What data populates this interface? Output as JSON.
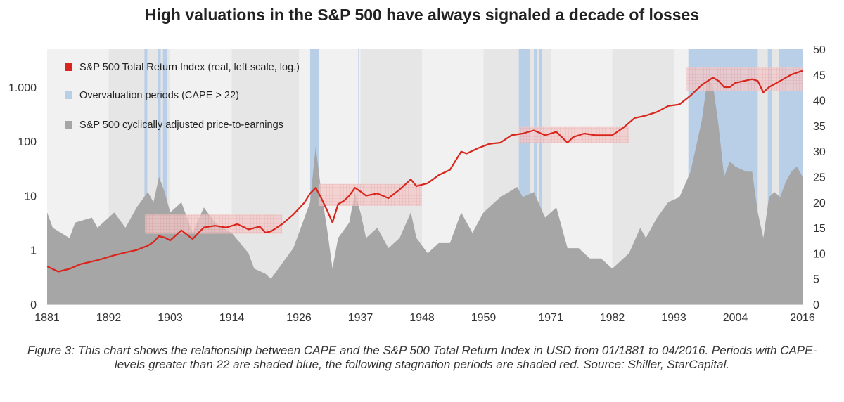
{
  "title": "High valuations in the S&P 500 have always signaled a decade of losses",
  "caption": "Figure 3: This chart shows the relationship between CAPE and the S&P 500 Total Return Index in USD from 01/1881 to 04/2016. Periods with CAPE-levels greater than 22 are shaded blue, the following stagnation periods are shaded red. Source: Shiller, StarCapital.",
  "colors": {
    "price": "#d9251c",
    "cape_area": "#a6a6a6",
    "overvaluation": "#b9cfe8",
    "stagnation": "#e9a9a9",
    "band_light": "#f1f1f1",
    "band_dark": "#e6e6e6"
  },
  "chart_data": {
    "type": "line",
    "title": "High valuations in the S&P 500 have always signaled a decade of losses",
    "x_range": [
      1881,
      2016
    ],
    "x_ticks": [
      1881,
      1892,
      1903,
      1914,
      1926,
      1937,
      1948,
      1959,
      1971,
      1982,
      1993,
      2004,
      2016
    ],
    "left_axis": {
      "scale": "log",
      "range": [
        0.1,
        5000
      ],
      "ticks": [
        {
          "value": 1000,
          "label": "1.000"
        },
        {
          "value": 100,
          "label": "100"
        },
        {
          "value": 10,
          "label": "10"
        },
        {
          "value": 1,
          "label": "1"
        },
        {
          "value": 0.1,
          "label": "0"
        }
      ]
    },
    "right_axis": {
      "scale": "linear",
      "range": [
        0,
        50
      ],
      "ticks": [
        0,
        5,
        10,
        15,
        20,
        25,
        30,
        35,
        40,
        45,
        50
      ]
    },
    "legend": [
      {
        "label": "S&P 500 Total Return Index (real, left scale, log.)",
        "kind": "price"
      },
      {
        "label": "Overvaluation periods (CAPE > 22)",
        "kind": "overvaluation"
      },
      {
        "label": "S&P 500 cyclically adjusted price-to-earnings",
        "kind": "cape"
      }
    ],
    "series": [
      {
        "name": "S&P 500 Total Return Index (real, left scale, log.)",
        "axis": "left",
        "x": [
          1881,
          1883,
          1885,
          1887,
          1890,
          1893,
          1895,
          1897,
          1899,
          1900,
          1901,
          1902,
          1903,
          1905,
          1907,
          1909,
          1911,
          1913,
          1915,
          1917,
          1919,
          1920,
          1921,
          1923,
          1925,
          1927,
          1928,
          1929,
          1930,
          1931,
          1932,
          1933,
          1934,
          1935,
          1936,
          1937,
          1938,
          1940,
          1942,
          1944,
          1946,
          1947,
          1949,
          1951,
          1953,
          1955,
          1956,
          1958,
          1960,
          1962,
          1964,
          1966,
          1968,
          1970,
          1972,
          1974,
          1975,
          1977,
          1979,
          1982,
          1984,
          1986,
          1988,
          1990,
          1992,
          1994,
          1996,
          1998,
          2000,
          2001,
          2002,
          2003,
          2004,
          2007,
          2008,
          2009,
          2010,
          2012,
          2014,
          2016
        ],
        "values": [
          0.5,
          0.4,
          0.45,
          0.55,
          0.65,
          0.8,
          0.9,
          1.0,
          1.2,
          1.4,
          1.8,
          1.7,
          1.5,
          2.3,
          1.6,
          2.6,
          2.8,
          2.6,
          3.0,
          2.4,
          2.7,
          2.1,
          2.2,
          3.0,
          4.5,
          7.5,
          11,
          14,
          9,
          5.5,
          3.2,
          7,
          8,
          10,
          14,
          12,
          10,
          11,
          9,
          13,
          20,
          15,
          17,
          24,
          30,
          65,
          60,
          75,
          90,
          95,
          130,
          140,
          160,
          130,
          150,
          95,
          120,
          140,
          130,
          130,
          180,
          270,
          300,
          350,
          450,
          480,
          700,
          1100,
          1500,
          1300,
          1000,
          1000,
          1200,
          1400,
          1300,
          800,
          1000,
          1300,
          1700,
          2000
        ]
      },
      {
        "name": "S&P 500 cyclically adjusted price-to-earnings",
        "axis": "right",
        "type": "area",
        "x": [
          1881,
          1882,
          1885,
          1886,
          1889,
          1890,
          1893,
          1895,
          1897,
          1899,
          1900,
          1901,
          1902,
          1903,
          1905,
          1907,
          1909,
          1911,
          1914,
          1917,
          1918,
          1920,
          1921,
          1923,
          1925,
          1927,
          1928,
          1929,
          1930,
          1931,
          1932,
          1933,
          1935,
          1936,
          1937,
          1938,
          1940,
          1942,
          1944,
          1946,
          1947,
          1949,
          1951,
          1953,
          1955,
          1957,
          1959,
          1962,
          1965,
          1966,
          1968,
          1970,
          1972,
          1974,
          1976,
          1978,
          1980,
          1982,
          1985,
          1987,
          1988,
          1990,
          1992,
          1994,
          1996,
          1998,
          1999,
          2000,
          2001,
          2002,
          2003,
          2004,
          2006,
          2007,
          2008,
          2009,
          2010,
          2011,
          2012,
          2013,
          2014,
          2015,
          2016
        ],
        "values": [
          18,
          15,
          13,
          16,
          17,
          15,
          18,
          15,
          19,
          22,
          20,
          25,
          22,
          18,
          20,
          14,
          19,
          16,
          14,
          10,
          7,
          6,
          5,
          8,
          11,
          17,
          20,
          31,
          22,
          15,
          7,
          13,
          16,
          22,
          18,
          13,
          15,
          11,
          13,
          18,
          13,
          10,
          12,
          12,
          18,
          14,
          18,
          21,
          23,
          21,
          22,
          17,
          19,
          11,
          11,
          9,
          9,
          7,
          10,
          15,
          13,
          17,
          20,
          21,
          26,
          36,
          44,
          43,
          35,
          25,
          28,
          27,
          26,
          26,
          18,
          13,
          21,
          22,
          21,
          24,
          26,
          27,
          25
        ]
      }
    ],
    "overvaluation_periods": [
      [
        1898.4,
        1898.9
      ],
      [
        1900.8,
        1901.3
      ],
      [
        1901.7,
        1902.5
      ],
      [
        1928.0,
        1929.6
      ],
      [
        1936.6,
        1936.8
      ],
      [
        1965.3,
        1967.3
      ],
      [
        1968.0,
        1968.5
      ],
      [
        1968.9,
        1969.4
      ],
      [
        1995.6,
        2008.0
      ],
      [
        2009.8,
        2010.5
      ],
      [
        2011.8,
        2016.0
      ]
    ],
    "stagnation_periods": [
      {
        "x": [
          1898.5,
          1923.0
        ],
        "y": [
          2.0,
          4.5
        ]
      },
      {
        "x": [
          1929.5,
          1948.0
        ],
        "y": [
          6.5,
          16.5
        ]
      },
      {
        "x": [
          1965.3,
          1985.0
        ],
        "y": [
          95.0,
          190.0
        ]
      },
      {
        "x": [
          1995.3,
          2016.0
        ],
        "y": [
          850.0,
          2300.0
        ]
      }
    ],
    "background_bands": [
      [
        1881,
        1892,
        "light"
      ],
      [
        1892,
        1903,
        "dark"
      ],
      [
        1903,
        1914,
        "light"
      ],
      [
        1914,
        1926,
        "dark"
      ],
      [
        1926,
        1937,
        "light"
      ],
      [
        1937,
        1948,
        "dark"
      ],
      [
        1948,
        1959,
        "light"
      ],
      [
        1959,
        1971,
        "dark"
      ],
      [
        1971,
        1982,
        "light"
      ],
      [
        1982,
        1993,
        "dark"
      ],
      [
        1993,
        2004,
        "light"
      ],
      [
        2004,
        2016,
        "dark"
      ]
    ]
  }
}
